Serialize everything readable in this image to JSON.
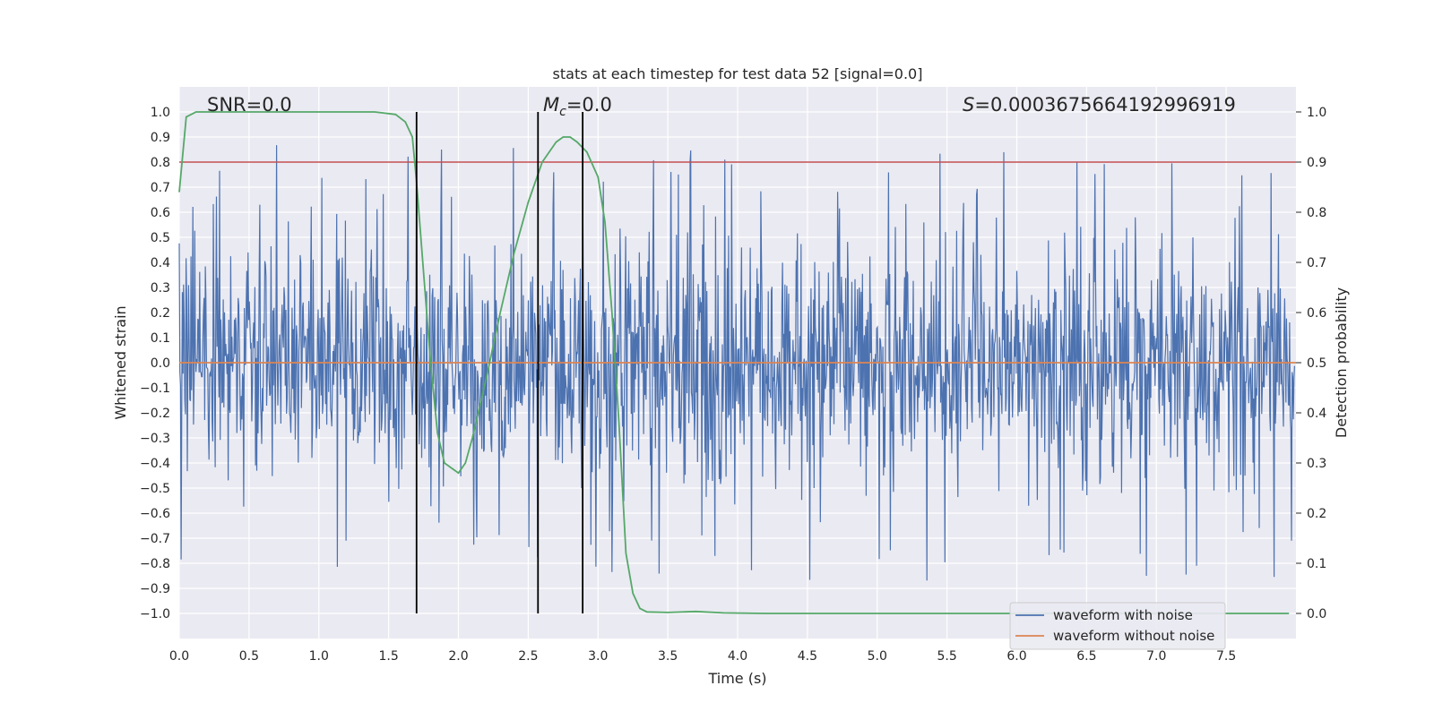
{
  "chart_data": {
    "type": "line",
    "title": "stats at each timestep for test data 52 [signal=0.0]",
    "xlabel": "Time (s)",
    "ylabel": "Whitened strain",
    "y2label": "Detection probability",
    "xlim": [
      0.0,
      8.0
    ],
    "ylim": [
      -1.1,
      1.1
    ],
    "y2lim": [
      -0.05,
      1.05
    ],
    "xticks": [
      "0.0",
      "0.5",
      "1.0",
      "1.5",
      "2.0",
      "2.5",
      "3.0",
      "3.5",
      "4.0",
      "4.5",
      "5.0",
      "5.5",
      "6.0",
      "6.5",
      "7.0",
      "7.5"
    ],
    "yticks": [
      "1.0",
      "0.9",
      "0.8",
      "0.7",
      "0.6",
      "0.5",
      "0.4",
      "0.3",
      "0.2",
      "0.1",
      "0.0",
      "−0.1",
      "−0.2",
      "−0.3",
      "−0.4",
      "−0.5",
      "−0.6",
      "−0.7",
      "−0.8",
      "−0.9",
      "−1.0"
    ],
    "y2ticks": [
      "0.0",
      "0.1",
      "0.2",
      "0.3",
      "0.4",
      "0.5",
      "0.6",
      "0.7",
      "0.8",
      "0.9",
      "1.0"
    ],
    "grid": true,
    "legend_position": "lower-right",
    "annotations": {
      "snr_prefix": "SNR=",
      "snr_value": "0.0",
      "mc_symbol": "M",
      "mc_sub": "c",
      "mc_value": "=0.0",
      "s_symbol": "S",
      "s_value": "=0.0003675664192996919"
    },
    "series": [
      {
        "name": "waveform with noise",
        "color": "#4c72b0",
        "kind": "noise",
        "samples": 1800,
        "typical_amplitude": 0.3,
        "peak_amplitude": 1.0
      },
      {
        "name": "waveform without noise",
        "color": "#dd8452",
        "kind": "flat",
        "value": 0.0
      },
      {
        "color": "#55a868",
        "axis": "right",
        "x": [
          0.0,
          0.05,
          0.12,
          0.2,
          0.4,
          0.8,
          1.2,
          1.4,
          1.55,
          1.62,
          1.67,
          1.7,
          1.75,
          1.8,
          1.85,
          1.9,
          1.95,
          2.0,
          2.05,
          2.1,
          2.2,
          2.3,
          2.4,
          2.5,
          2.6,
          2.7,
          2.75,
          2.8,
          2.85,
          2.92,
          3.0,
          3.05,
          3.1,
          3.15,
          3.2,
          3.25,
          3.3,
          3.35,
          3.5,
          3.7,
          3.9,
          4.2,
          5.0,
          6.0,
          7.0,
          7.95
        ],
        "y": [
          0.84,
          0.99,
          1.0,
          1.0,
          1.0,
          1.0,
          1.0,
          1.0,
          0.995,
          0.98,
          0.95,
          0.86,
          0.68,
          0.5,
          0.36,
          0.3,
          0.29,
          0.28,
          0.3,
          0.35,
          0.47,
          0.6,
          0.72,
          0.82,
          0.9,
          0.94,
          0.95,
          0.95,
          0.94,
          0.92,
          0.87,
          0.78,
          0.6,
          0.38,
          0.12,
          0.04,
          0.01,
          0.003,
          0.002,
          0.004,
          0.001,
          0.0,
          0.0,
          0.0,
          0.0,
          0.0
        ]
      }
    ],
    "threshold": {
      "axis": "right",
      "value": 0.9,
      "color": "#c44e52"
    },
    "markers": {
      "x": [
        1.7,
        2.57,
        2.89
      ],
      "color": "#000000"
    }
  }
}
